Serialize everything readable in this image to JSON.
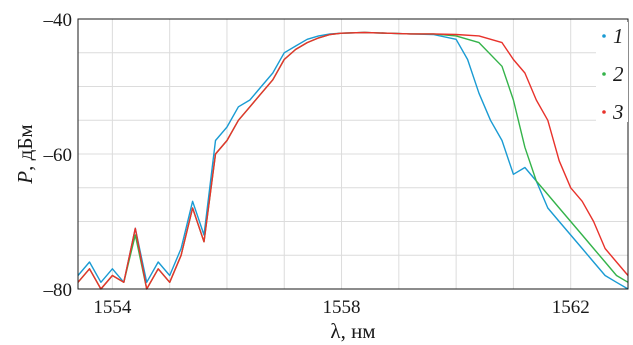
{
  "chart_data": {
    "type": "line",
    "title": "",
    "xlabel": "λ, нм",
    "ylabel": {
      "var": "P",
      "unit": ", дБм"
    },
    "xlim": [
      1553.4,
      1563.0
    ],
    "ylim": [
      -80,
      -40
    ],
    "xticks": [
      1554,
      1558,
      1562
    ],
    "yticks": [
      -40,
      -60,
      -80
    ],
    "xtick_labels": [
      "1554",
      "1558",
      "1562"
    ],
    "ytick_labels": [
      "–40",
      "–60",
      "–80"
    ],
    "grid": true,
    "legend_placement": "top-right",
    "series": [
      {
        "name": "1",
        "color": "#1a9bd3",
        "x": [
          1553.4,
          1553.6,
          1553.8,
          1554.0,
          1554.2,
          1554.4,
          1554.6,
          1554.8,
          1555.0,
          1555.2,
          1555.4,
          1555.6,
          1555.8,
          1556.0,
          1556.2,
          1556.4,
          1556.6,
          1556.8,
          1557.0,
          1557.2,
          1557.4,
          1557.6,
          1557.8,
          1558.0,
          1558.4,
          1558.8,
          1559.2,
          1559.6,
          1560.0,
          1560.2,
          1560.4,
          1560.6,
          1560.8,
          1561.0,
          1561.2,
          1561.4,
          1561.6,
          1561.8,
          1562.0,
          1562.2,
          1562.4,
          1562.6,
          1562.8,
          1563.0
        ],
        "y": [
          -78,
          -76,
          -79,
          -77,
          -79,
          -71,
          -79,
          -76,
          -78,
          -74,
          -67,
          -72,
          -58,
          -56,
          -53,
          -52,
          -50,
          -48,
          -45,
          -44,
          -43,
          -42.5,
          -42.2,
          -42.1,
          -42.0,
          -42.1,
          -42.2,
          -42.3,
          -43,
          -46,
          -51,
          -55,
          -58,
          -63,
          -62,
          -64,
          -68,
          -70,
          -72,
          -74,
          -76,
          -78,
          -79,
          -80
        ]
      },
      {
        "name": "2",
        "color": "#34b34a",
        "x": [
          1553.4,
          1553.6,
          1553.8,
          1554.0,
          1554.2,
          1554.4,
          1554.6,
          1554.8,
          1555.0,
          1555.2,
          1555.4,
          1555.6,
          1555.8,
          1556.0,
          1556.2,
          1556.4,
          1556.6,
          1556.8,
          1557.0,
          1557.2,
          1557.4,
          1557.6,
          1557.8,
          1558.0,
          1558.4,
          1558.8,
          1559.2,
          1559.6,
          1560.0,
          1560.4,
          1560.8,
          1561.0,
          1561.2,
          1561.4,
          1561.6,
          1561.8,
          1562.0,
          1562.2,
          1562.4,
          1562.6,
          1562.8,
          1563.0
        ],
        "y": [
          -79,
          -77,
          -80,
          -78,
          -79,
          -72,
          -80,
          -77,
          -79,
          -75,
          -68,
          -73,
          -60,
          -58,
          -55,
          -53,
          -51,
          -49,
          -46,
          -44.5,
          -43.5,
          -42.8,
          -42.3,
          -42.1,
          -42.0,
          -42.1,
          -42.2,
          -42.2,
          -42.5,
          -43.5,
          -47,
          -52,
          -59,
          -64,
          -66,
          -68,
          -70,
          -72,
          -74,
          -76,
          -78,
          -79
        ]
      },
      {
        "name": "3",
        "color": "#e8322b",
        "x": [
          1553.4,
          1553.6,
          1553.8,
          1554.0,
          1554.2,
          1554.4,
          1554.6,
          1554.8,
          1555.0,
          1555.2,
          1555.4,
          1555.6,
          1555.8,
          1556.0,
          1556.2,
          1556.4,
          1556.6,
          1556.8,
          1557.0,
          1557.2,
          1557.4,
          1557.6,
          1557.8,
          1558.0,
          1558.4,
          1558.8,
          1559.2,
          1559.6,
          1560.0,
          1560.4,
          1560.8,
          1561.0,
          1561.2,
          1561.4,
          1561.6,
          1561.8,
          1562.0,
          1562.2,
          1562.4,
          1562.6,
          1562.8,
          1563.0
        ],
        "y": [
          -79,
          -77,
          -80,
          -78,
          -79,
          -71,
          -80,
          -77,
          -79,
          -75,
          -68,
          -73,
          -60,
          -58,
          -55,
          -53,
          -51,
          -49,
          -46,
          -44.5,
          -43.5,
          -42.8,
          -42.3,
          -42.1,
          -42.0,
          -42.1,
          -42.2,
          -42.2,
          -42.3,
          -42.5,
          -43.5,
          -46,
          -48,
          -52,
          -55,
          -61,
          -65,
          -67,
          -70,
          -74,
          -76,
          -78
        ]
      }
    ]
  }
}
